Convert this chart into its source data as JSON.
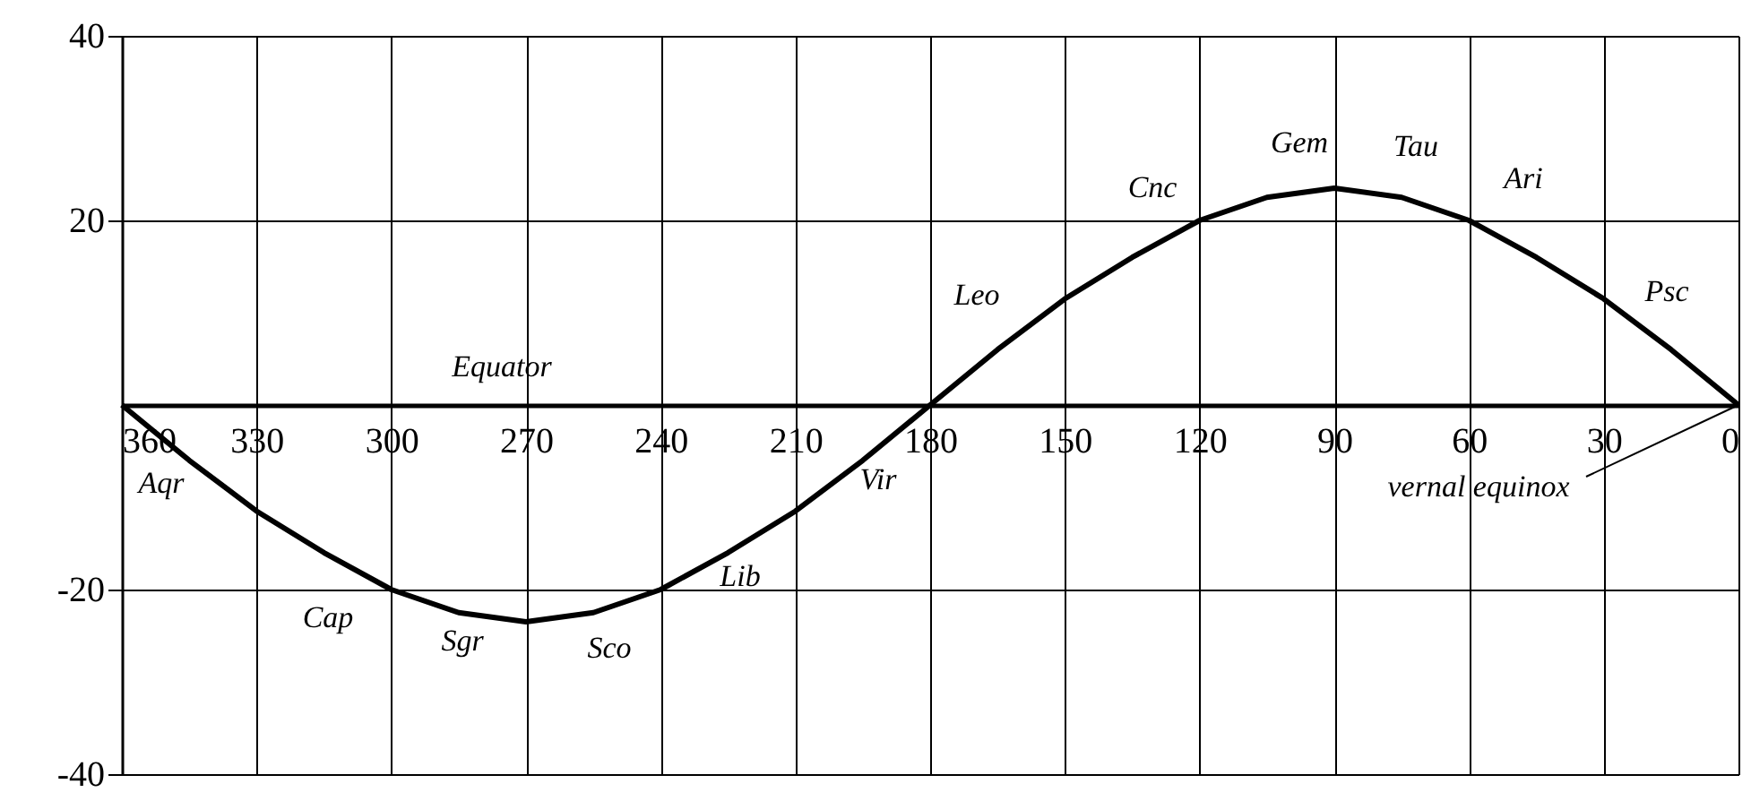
{
  "chart_data": {
    "type": "line",
    "x": [
      360,
      345,
      330,
      315,
      300,
      285,
      270,
      255,
      240,
      225,
      210,
      195,
      180,
      165,
      150,
      135,
      120,
      105,
      90,
      75,
      60,
      45,
      30,
      15,
      0
    ],
    "series": [
      {
        "color": "#000000",
        "values": [
          0,
          -6,
          -11.5,
          -16,
          -20,
          -22.5,
          -23.5,
          -22.5,
          -20,
          -16,
          -11.5,
          -6,
          0,
          6,
          11.5,
          16,
          20,
          22.5,
          23.5,
          22.5,
          20,
          16,
          11.5,
          6,
          0
        ]
      }
    ],
    "xlim": [
      360,
      0
    ],
    "xticks": [
      360,
      330,
      300,
      270,
      240,
      210,
      180,
      150,
      120,
      90,
      60,
      30,
      0
    ],
    "ylim": [
      -40,
      40
    ],
    "yticks": [
      -40,
      -20,
      20,
      40
    ],
    "grid": true,
    "marker": "none",
    "line_style": "solid",
    "annotations": [
      "Aqr",
      "Cap",
      "Sgr",
      "Sco",
      "Lib",
      "Vir",
      "Equator",
      "Leo",
      "Cnc",
      "Gem",
      "Tau",
      "Ari",
      "Psc",
      {
        "text": "vernal equinox",
        "x": 0,
        "y": 0
      }
    ]
  }
}
